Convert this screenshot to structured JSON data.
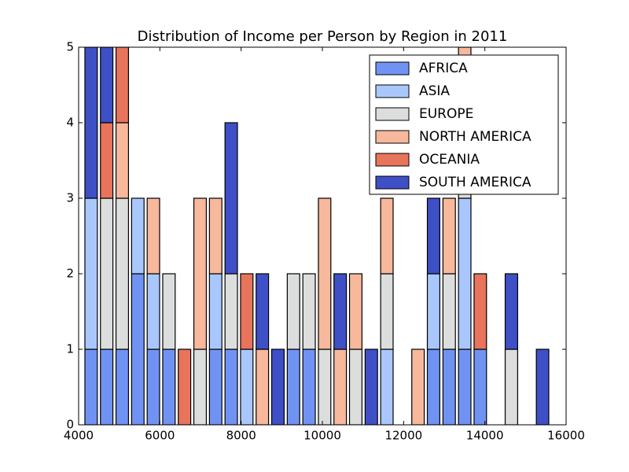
{
  "chart_data": {
    "type": "histogram",
    "stacked": true,
    "title": "Distribution of Income per Person by Region in 2011",
    "bins": [
      4116,
      4499,
      4882,
      5266,
      5649,
      6032,
      6415,
      6798,
      7182,
      7565,
      7948,
      8331,
      8714,
      9098,
      9481,
      9864,
      10247,
      10630,
      11014,
      11397,
      11780,
      12163,
      12546,
      12930,
      13313,
      13696,
      14079,
      14462,
      14846,
      15229,
      15612
    ],
    "series": [
      {
        "name": "AFRICA",
        "color": "#7093f3",
        "values": [
          1,
          1,
          1,
          2,
          1,
          1,
          0,
          0,
          1,
          1,
          0,
          0,
          0,
          1,
          1,
          0,
          0,
          0,
          0,
          0,
          0,
          0,
          1,
          1,
          1,
          1,
          0,
          0,
          0,
          0
        ]
      },
      {
        "name": "ASIA",
        "color": "#aac7fd",
        "values": [
          2,
          0,
          0,
          1,
          1,
          0,
          0,
          0,
          1,
          0,
          1,
          0,
          0,
          0,
          0,
          0,
          0,
          0,
          0,
          1,
          0,
          0,
          1,
          0,
          2,
          0,
          0,
          0,
          0,
          0
        ]
      },
      {
        "name": "EUROPE",
        "color": "#dcdddd",
        "values": [
          0,
          2,
          2,
          0,
          0,
          1,
          0,
          1,
          0,
          1,
          0,
          0,
          0,
          1,
          1,
          1,
          0,
          1,
          0,
          1,
          0,
          0,
          0,
          1,
          1,
          0,
          0,
          1,
          0,
          0
        ]
      },
      {
        "name": "NORTH AMERICA",
        "color": "#f7b89c",
        "values": [
          0,
          0,
          1,
          0,
          1,
          0,
          0,
          2,
          1,
          0,
          0,
          1,
          0,
          0,
          0,
          2,
          1,
          1,
          0,
          1,
          0,
          1,
          0,
          1,
          1,
          0,
          0,
          0,
          0,
          0
        ]
      },
      {
        "name": "OCEANIA",
        "color": "#e7745b",
        "values": [
          0,
          1,
          1,
          0,
          0,
          0,
          1,
          0,
          0,
          0,
          1,
          0,
          0,
          0,
          0,
          0,
          0,
          0,
          0,
          0,
          0,
          0,
          0,
          0,
          0,
          1,
          0,
          0,
          0,
          0
        ]
      },
      {
        "name": "SOUTH AMERICA",
        "color": "#3f4fc6",
        "values": [
          2,
          1,
          0,
          0,
          0,
          0,
          0,
          0,
          0,
          2,
          0,
          1,
          1,
          0,
          0,
          0,
          1,
          0,
          1,
          0,
          0,
          0,
          1,
          0,
          0,
          0,
          0,
          1,
          0,
          1
        ]
      }
    ],
    "xlim": [
      4000,
      16000
    ],
    "xticks": [
      4000,
      6000,
      8000,
      10000,
      12000,
      14000,
      16000
    ],
    "ylim": [
      0,
      5
    ],
    "yticks": [
      0,
      1,
      2,
      3,
      4,
      5
    ],
    "legend": "upper right"
  }
}
